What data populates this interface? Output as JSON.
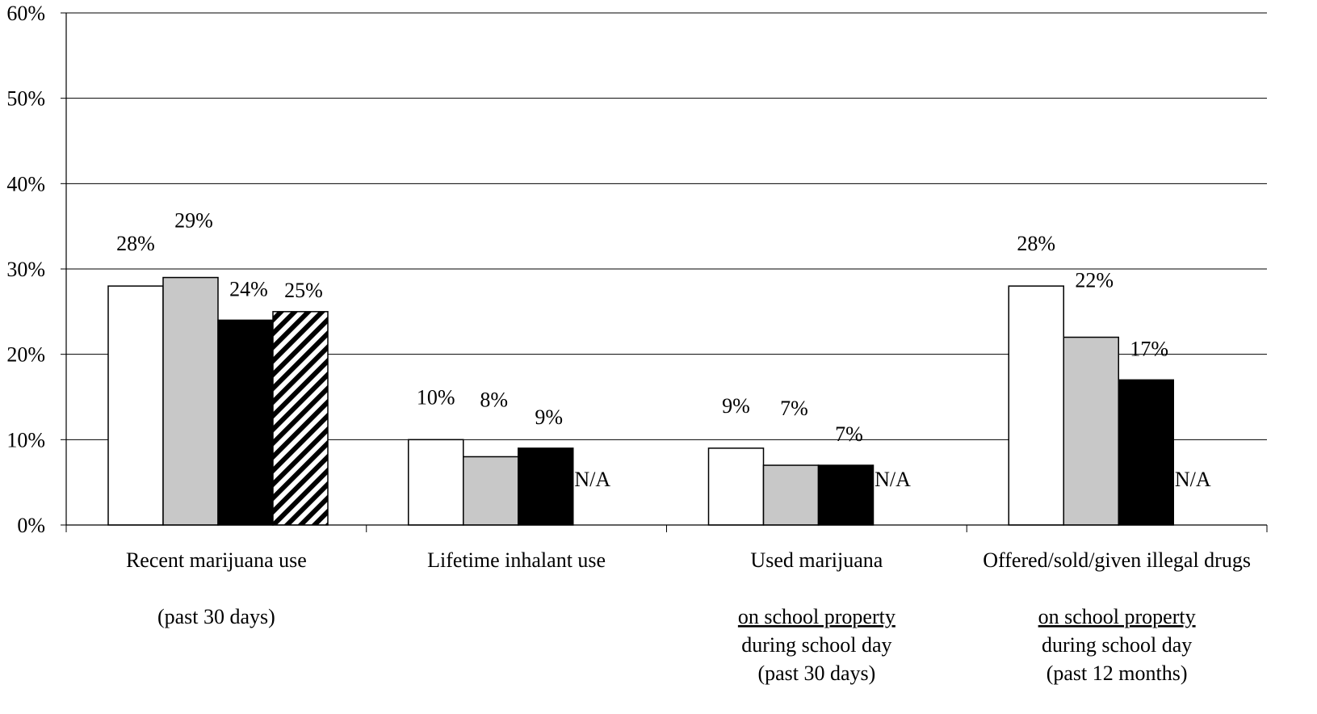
{
  "chart_data": {
    "type": "bar",
    "ylim": [
      0,
      60
    ],
    "yticks": [
      "0%",
      "10%",
      "20%",
      "30%",
      "40%",
      "50%",
      "60%"
    ],
    "grid": true,
    "categories": [
      {
        "lines": [
          {
            "text": "Recent marijuana use",
            "underline": false
          },
          {
            "text": "",
            "underline": false
          },
          {
            "text": "(past 30 days)",
            "underline": false
          }
        ]
      },
      {
        "lines": [
          {
            "text": "Lifetime inhalant use",
            "underline": false
          }
        ]
      },
      {
        "lines": [
          {
            "text": "Used marijuana",
            "underline": false
          },
          {
            "text": "",
            "underline": false
          },
          {
            "text": "on school property",
            "underline": true
          },
          {
            "text": "during school day",
            "underline": false
          },
          {
            "text": "(past 30 days)",
            "underline": false
          }
        ]
      },
      {
        "lines": [
          {
            "text": "Offered/sold/given illegal drugs",
            "underline": false
          },
          {
            "text": "",
            "underline": false
          },
          {
            "text": "on school property",
            "underline": true
          },
          {
            "text": "during school day",
            "underline": false
          },
          {
            "text": "(past 12 months)",
            "underline": false
          }
        ]
      }
    ],
    "series": [
      {
        "fill": "#ffffff",
        "pattern": "none",
        "values": [
          28,
          10,
          9,
          28
        ],
        "labels": [
          "28%",
          "10%",
          "9%",
          "28%"
        ]
      },
      {
        "fill": "#c8c8c8",
        "pattern": "none",
        "values": [
          29,
          8,
          7,
          22
        ],
        "labels": [
          "29%",
          "8%",
          "7%",
          "22%"
        ]
      },
      {
        "fill": "#000000",
        "pattern": "none",
        "values": [
          24,
          9,
          7,
          17
        ],
        "labels": [
          "24%",
          "9%",
          "7%",
          "17%"
        ]
      },
      {
        "fill": "#ffffff",
        "pattern": "diagonal-stripes",
        "values": [
          25,
          null,
          null,
          null
        ],
        "labels": [
          "25%",
          "N/A",
          "N/A",
          "N/A"
        ]
      }
    ]
  }
}
